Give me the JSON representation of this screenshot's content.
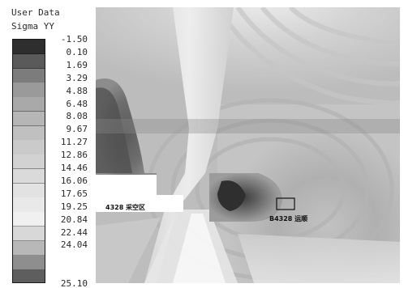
{
  "legend": {
    "title_line1": "User Data",
    "title_line2": "Sigma YY",
    "tick_labels": [
      "-1.50",
      "0.10",
      "1.69",
      "3.29",
      "4.88",
      "6.48",
      "8.08",
      "9.67",
      "11.27",
      "12.86",
      "14.46",
      "16.06",
      "17.65",
      "19.25",
      "20.84",
      "22.44",
      "24.04",
      "25.10"
    ],
    "min": -1.5,
    "max": 25.1,
    "scale_colors": [
      "#2e2e2e",
      "#5a5a5a",
      "#7c7c7c",
      "#9a9a9a",
      "#a9a9a9",
      "#b6b6b6",
      "#c0c0c0",
      "#cacaca",
      "#d2d2d2",
      "#dadada",
      "#e2e2e2",
      "#e9e9e9",
      "#f0f0f0",
      "#d8d8d8",
      "#b8b8b8",
      "#8e8e8e",
      "#5e5e5e"
    ]
  },
  "plot": {
    "annotation_goaf": "4328 采空区",
    "annotation_roadway": "B4328 运顺"
  },
  "colors": {
    "plot_background": "#bdbdbd",
    "goaf_fill": "#ffffff",
    "outline": "#111111"
  }
}
